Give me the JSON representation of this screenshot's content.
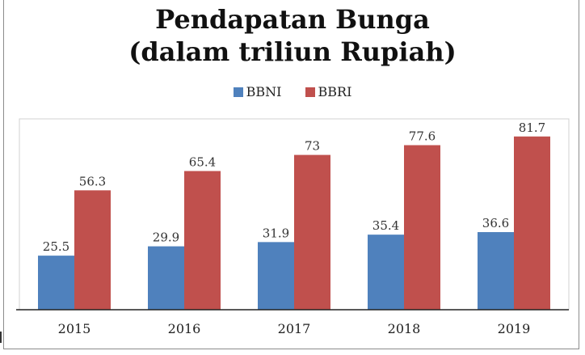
{
  "colors": {
    "BBNI": "#4f81bd",
    "BBRI": "#c0504d"
  },
  "chart_data": {
    "type": "bar",
    "title": "Pendapatan Bunga",
    "subtitle": "(dalam triliun Rupiah)",
    "xlabel": "",
    "ylabel": "",
    "categories": [
      "2015",
      "2016",
      "2017",
      "2018",
      "2019"
    ],
    "series": [
      {
        "name": "BBNI",
        "values": [
          25.5,
          29.9,
          31.9,
          35.4,
          36.6
        ],
        "labels": [
          "25.5",
          "29.9",
          "31.9",
          "35.4",
          "36.6"
        ]
      },
      {
        "name": "BBRI",
        "values": [
          56.3,
          65.4,
          73,
          77.6,
          81.7
        ],
        "labels": [
          "56.3",
          "65.4",
          "73",
          "77.6",
          "81.7"
        ]
      }
    ],
    "ylim": [
      0,
      90
    ],
    "grid": false,
    "legend": "top-center"
  }
}
